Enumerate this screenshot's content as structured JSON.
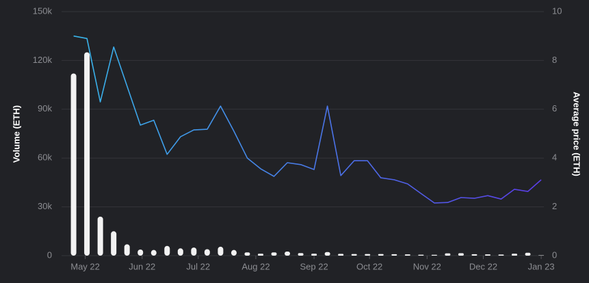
{
  "chart_data": {
    "type": "bar-line",
    "x": [
      0,
      1,
      2,
      3,
      4,
      5,
      6,
      7,
      8,
      9,
      10,
      11,
      12,
      13,
      14,
      15,
      16,
      17,
      18,
      19,
      20,
      21,
      22,
      23,
      24,
      25,
      26,
      27,
      28,
      29,
      30,
      31,
      32,
      33,
      34,
      35
    ],
    "xlim": [
      -0.9,
      35.2
    ],
    "xticks": [
      {
        "value": 0.87,
        "label": "May 22"
      },
      {
        "value": 5.13,
        "label": "Jun 22"
      },
      {
        "value": 9.33,
        "label": "Jul 22"
      },
      {
        "value": 13.64,
        "label": "Aug 22"
      },
      {
        "value": 18.0,
        "label": "Sep 22"
      },
      {
        "value": 22.15,
        "label": "Oct 22"
      },
      {
        "value": 26.46,
        "label": "Nov 22"
      },
      {
        "value": 30.67,
        "label": "Dec 22"
      },
      {
        "value": 35.0,
        "label": "Jan 23"
      }
    ],
    "y_label": "Volume (ETH)",
    "y2_label": "Average price (ETH)",
    "ylim": [
      0,
      150000
    ],
    "yticks": [
      0,
      {
        "value": 30000,
        "label": "30k"
      },
      {
        "value": 60000,
        "label": "60k"
      },
      {
        "value": 90000,
        "label": "90k"
      },
      {
        "value": 120000,
        "label": "120k"
      },
      {
        "value": 150000,
        "label": "150k"
      }
    ],
    "y2lim": [
      0,
      10
    ],
    "y2ticks": [
      0,
      2,
      4,
      6,
      8,
      10
    ],
    "grid": true,
    "series": [
      {
        "name": "Volume",
        "kind": "bar",
        "color": "#f2f2f2",
        "values": [
          112000,
          125000,
          24000,
          15000,
          7000,
          3800,
          3500,
          6000,
          4500,
          5000,
          4000,
          5500,
          3500,
          2000,
          1200,
          2000,
          2500,
          1600,
          1200,
          2200,
          1100,
          1000,
          1000,
          1000,
          900,
          800,
          600,
          500,
          1400,
          1500,
          900,
          800,
          700,
          1200,
          1800,
          200
        ]
      },
      {
        "name": "Average price",
        "kind": "line",
        "axis": "y2",
        "color": "#38b6ea",
        "gradient_to": "#5a3de6",
        "values": [
          9.0,
          8.9,
          6.3,
          8.55,
          6.95,
          5.35,
          5.55,
          4.15,
          4.87,
          5.15,
          5.18,
          6.13,
          5.1,
          4.0,
          3.56,
          3.25,
          3.81,
          3.73,
          3.53,
          6.13,
          3.28,
          3.89,
          3.89,
          3.19,
          3.11,
          2.94,
          2.55,
          2.16,
          2.18,
          2.38,
          2.35,
          2.46,
          2.32,
          2.72,
          2.63,
          3.11
        ]
      }
    ]
  }
}
